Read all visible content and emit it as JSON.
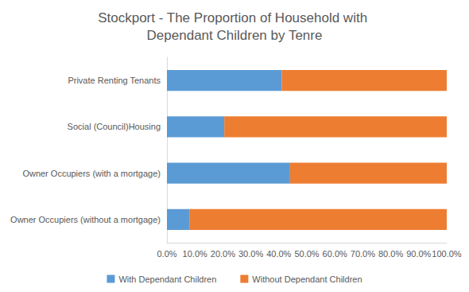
{
  "chart_data": {
    "type": "bar",
    "title": "Stockport - The Proportion of Household with Dependant Children by Tenre",
    "orientation": "horizontal",
    "stacked": true,
    "grid": false,
    "legend": "bottom",
    "categories": [
      "Private Renting Tenants",
      "Social (Council)Housing",
      "Owner Occupiers (with a mortgage)",
      "Owner Occupiers (without a mortgage)"
    ],
    "series": [
      {
        "name": "With Dependant Children",
        "color": "#5B9BD5",
        "values": [
          41,
          20.5,
          44,
          8
        ]
      },
      {
        "name": "Without Dependant Children",
        "color": "#ED7D31",
        "values": [
          59,
          79.5,
          56,
          92
        ]
      }
    ],
    "xlim": [
      0,
      100
    ],
    "xticks": [
      {
        "value": 0,
        "label": "0.0%"
      },
      {
        "value": 10,
        "label": "10.0%"
      },
      {
        "value": 20,
        "label": "20.0%"
      },
      {
        "value": 30,
        "label": "30.0%"
      },
      {
        "value": 40,
        "label": "40.0%"
      },
      {
        "value": 50,
        "label": "50.0%"
      },
      {
        "value": 60,
        "label": "60.0%"
      },
      {
        "value": 70,
        "label": "70.0%"
      },
      {
        "value": 80,
        "label": "80.0%"
      },
      {
        "value": 90,
        "label": "90.0%"
      },
      {
        "value": 100,
        "label": "100.0%"
      }
    ]
  }
}
